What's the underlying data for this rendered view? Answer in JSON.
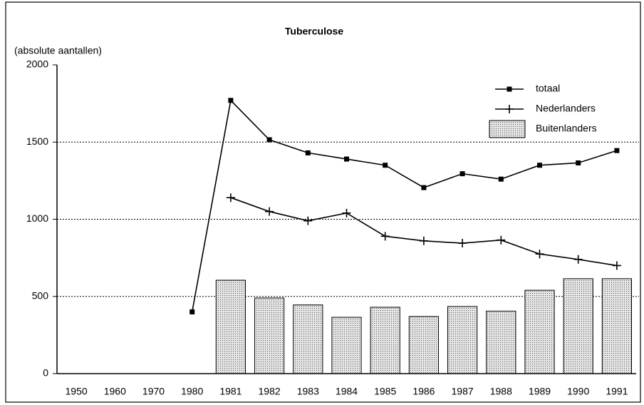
{
  "chart_data": {
    "type": "bar-line",
    "title": "Tuberculose",
    "y_label": "(absolute aantallen)",
    "categories": [
      "1950",
      "1960",
      "1970",
      "1980",
      "1981",
      "1982",
      "1983",
      "1984",
      "1985",
      "1986",
      "1987",
      "1988",
      "1989",
      "1990",
      "1991"
    ],
    "series": [
      {
        "name": "totaal",
        "type": "line",
        "marker": "square",
        "color": "#000000",
        "values": [
          null,
          null,
          null,
          400,
          1770,
          1515,
          1430,
          1390,
          1350,
          1205,
          1295,
          1260,
          1350,
          1365,
          1445
        ]
      },
      {
        "name": "Nederlanders",
        "type": "line",
        "marker": "plus",
        "color": "#000000",
        "values": [
          null,
          null,
          null,
          null,
          1140,
          1050,
          990,
          1040,
          890,
          860,
          845,
          865,
          775,
          740,
          700
        ]
      },
      {
        "name": "Buitenlanders",
        "type": "bar",
        "color": "#bdbdbd",
        "values": [
          null,
          null,
          null,
          null,
          605,
          490,
          445,
          365,
          430,
          370,
          435,
          405,
          540,
          615,
          615
        ]
      }
    ],
    "ylim": [
      0,
      2000
    ],
    "yticks": [
      0,
      500,
      1000,
      1500,
      2000
    ],
    "grid": true,
    "legend": "top-right"
  }
}
